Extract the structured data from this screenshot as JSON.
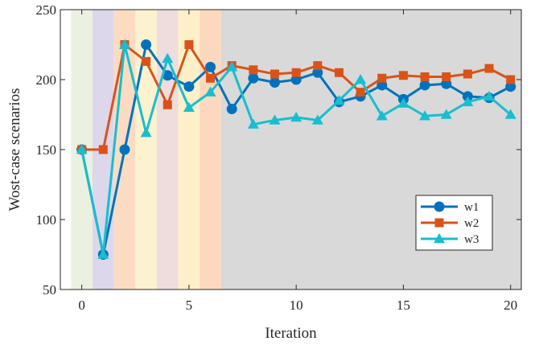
{
  "chart_data": {
    "type": "line",
    "xlabel": "Iteration",
    "ylabel": "Wost-case scenarios",
    "xlim": [
      -1,
      20.5
    ],
    "ylim": [
      50,
      250
    ],
    "x_ticks": [
      0,
      5,
      10,
      15,
      20
    ],
    "y_ticks": [
      50,
      100,
      150,
      200,
      250
    ],
    "grid": false,
    "legend_position": "lower-right",
    "x": [
      0,
      1,
      2,
      3,
      4,
      5,
      6,
      7,
      8,
      9,
      10,
      11,
      12,
      13,
      14,
      15,
      16,
      17,
      18,
      19,
      20
    ],
    "series": [
      {
        "name": "w1",
        "color": "#0072bd",
        "marker": "circle",
        "values": [
          150,
          75,
          150,
          225,
          203,
          195,
          209,
          179,
          201,
          198,
          200,
          205,
          184,
          188,
          196,
          186,
          196,
          197,
          188,
          187,
          195
        ]
      },
      {
        "name": "w2",
        "color": "#d95319",
        "marker": "square",
        "values": [
          150,
          150,
          225,
          213,
          182,
          225,
          201,
          210,
          207,
          204,
          205,
          210,
          205,
          191,
          201,
          203,
          202,
          202,
          204,
          208,
          200
        ]
      },
      {
        "name": "w3",
        "color": "#17becf",
        "marker": "triangle",
        "values": [
          150,
          75,
          225,
          162,
          215,
          180,
          191,
          209,
          168,
          171,
          173,
          171,
          185,
          200,
          174,
          183,
          174,
          175,
          184,
          188,
          175
        ]
      }
    ],
    "background_bands": [
      {
        "from": -0.5,
        "to": 0.5,
        "color": "#ebf1e0"
      },
      {
        "from": 0.5,
        "to": 1.5,
        "color": "#ddd7eb"
      },
      {
        "from": 1.5,
        "to": 2.5,
        "color": "#fbdcc2"
      },
      {
        "from": 2.5,
        "to": 3.5,
        "color": "#fdf2cf"
      },
      {
        "from": 3.5,
        "to": 4.5,
        "color": "#efdcdc"
      },
      {
        "from": 4.5,
        "to": 5.5,
        "color": "#fdf0c9"
      },
      {
        "from": 5.5,
        "to": 6.5,
        "color": "#fcd9be"
      },
      {
        "from": 6.5,
        "to": 20.5,
        "color": "#d9d9d9"
      }
    ]
  }
}
